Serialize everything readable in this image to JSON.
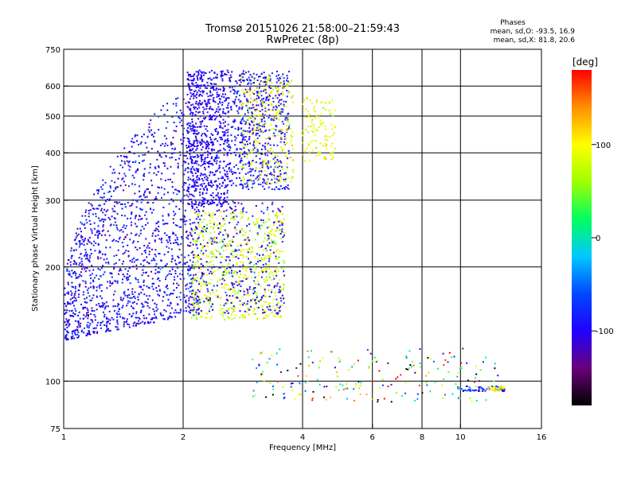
{
  "chart_data": {
    "type": "scatter",
    "title_line1": "Tromsø 20151026 21:58:00–21:59:43",
    "title_line2": "RwPretec (8p)",
    "stats": {
      "heading": "Phases",
      "line_o": "mean, sd,O: -93.5, 16.9",
      "line_x": "mean, sd,X:  81.8, 20.6"
    },
    "xlabel": "Frequency [MHz]",
    "ylabel": "Stationary phase Virtual Height [km]",
    "x_scale": "log",
    "y_scale": "log",
    "xlim": [
      1,
      16
    ],
    "ylim": [
      75,
      750
    ],
    "x_ticks": [
      1,
      2,
      4,
      6,
      8,
      10,
      16
    ],
    "x_tick_labels": [
      "1",
      "2",
      "4",
      "6",
      "8",
      "10",
      "16"
    ],
    "y_ticks": [
      75,
      100,
      200,
      300,
      400,
      500,
      600,
      750
    ],
    "y_tick_labels": [
      "75",
      "100",
      "200",
      "300",
      "400",
      "500",
      "600",
      "750"
    ],
    "x_grid": [
      2,
      4,
      6,
      8,
      10
    ],
    "y_grid": [
      100,
      200,
      300,
      400,
      500,
      600
    ],
    "colorbar": {
      "label": "[deg]",
      "range": [
        -180,
        180
      ],
      "ticks": [
        100,
        0,
        -100
      ],
      "tick_labels": [
        "100",
        "0",
        "-100"
      ],
      "colormap": [
        "#000000",
        "#6a007a",
        "#2000ff",
        "#0048ff",
        "#00c8ff",
        "#00ff60",
        "#a0ff00",
        "#ffff00",
        "#ff9000",
        "#ff0000"
      ]
    },
    "series": [
      {
        "x_range": [
          1.0,
          2.2
        ],
        "height_lower_start": 128,
        "height_lower_end": 150,
        "height_upper_start": 200,
        "height_upper_end": 640,
        "phase_mean": -95,
        "phase_sd": 18,
        "count": 1500
      },
      {
        "x_range": [
          2.05,
          2.6
        ],
        "height_range": [
          290,
          660
        ],
        "phase_mean": -100,
        "phase_sd": 10,
        "count": 700
      },
      {
        "x_range": [
          2.6,
          3.7
        ],
        "height_range": [
          320,
          660
        ],
        "phase_mean": -90,
        "phase_sd": 15,
        "count": 600
      },
      {
        "x_range": [
          2.8,
          3.8
        ],
        "height_range": [
          330,
          640
        ],
        "phase_mean": 90,
        "phase_sd": 20,
        "count": 260
      },
      {
        "x_range": [
          4.0,
          4.85
        ],
        "height_range": [
          380,
          560
        ],
        "phase_mean": 90,
        "phase_sd": 15,
        "count": 110
      },
      {
        "x_range": [
          2.1,
          3.6
        ],
        "height_range": [
          145,
          280
        ],
        "phase_mean": 80,
        "phase_sd": 20,
        "count": 600
      },
      {
        "x_range": [
          2.05,
          3.6
        ],
        "height_range": [
          150,
          300
        ],
        "phase_mean": -95,
        "phase_sd": 25,
        "count": 380
      },
      {
        "x_range": [
          2.9,
          12.5
        ],
        "height_range": [
          88,
          122
        ],
        "phase_mean": 10,
        "phase_sd": 110,
        "count": 200
      },
      {
        "x_range": [
          9.8,
          13.0
        ],
        "height_range": [
          94,
          97
        ],
        "phase_mean": -70,
        "phase_sd": 30,
        "count": 60
      },
      {
        "x_range": [
          11.8,
          13.0
        ],
        "height_range": [
          94,
          97
        ],
        "phase_mean": 100,
        "phase_sd": 10,
        "count": 30
      }
    ]
  }
}
